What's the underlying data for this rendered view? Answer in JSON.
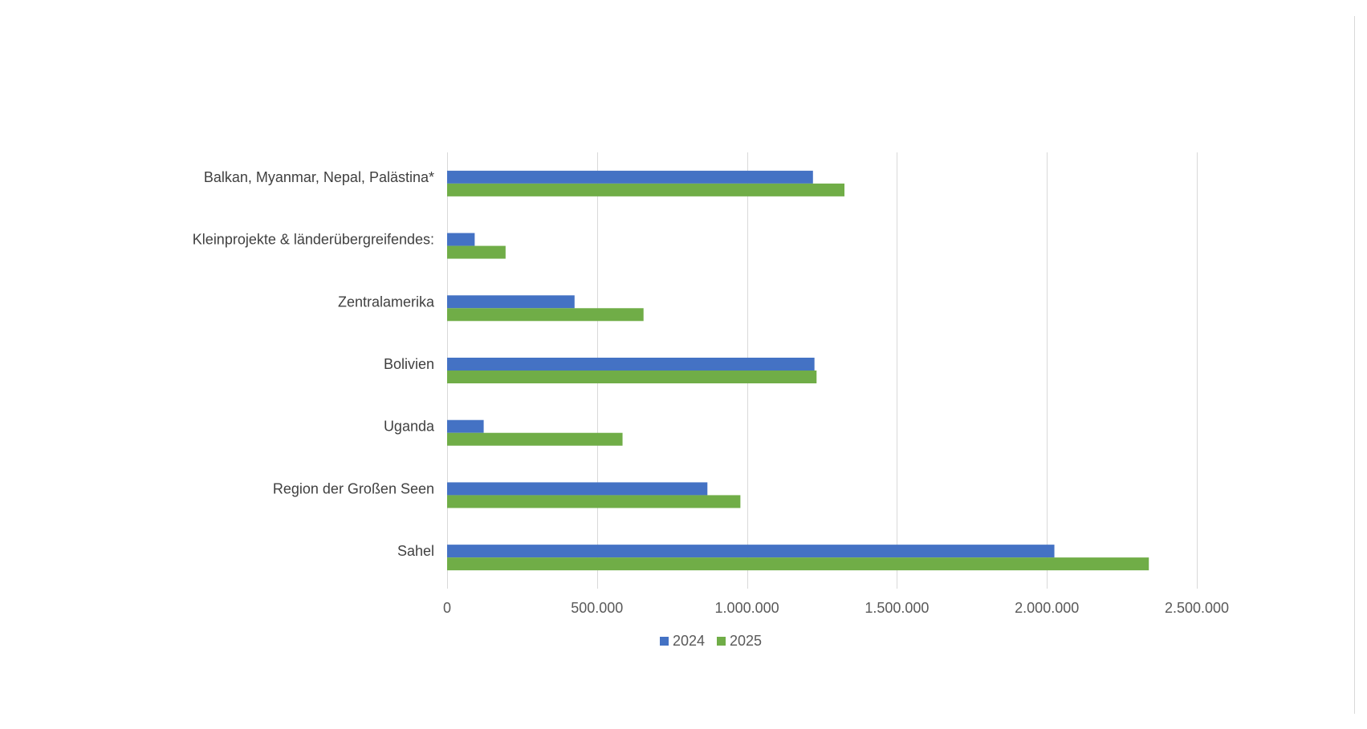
{
  "chart_data": {
    "type": "bar",
    "orientation": "horizontal",
    "title": "",
    "xlabel": "",
    "ylabel": "",
    "categories": [
      "Sahel",
      "Region der Großen Seen",
      "Uganda",
      "Bolivien",
      "Zentralamerika",
      "Kleinprojekte & länderübergreifendes:",
      "Balkan, Myanmar, Nepal, Palästina*"
    ],
    "series": [
      {
        "name": "2024",
        "color": "#4472c4",
        "values": [
          2025000,
          868000,
          122000,
          1225000,
          425000,
          92000,
          1220000
        ]
      },
      {
        "name": "2025",
        "color": "#70ad47",
        "values": [
          2340000,
          978000,
          585000,
          1232000,
          655000,
          195000,
          1325000
        ]
      }
    ],
    "xlim": [
      0,
      2500000
    ],
    "xticks": [
      0,
      500000,
      1000000,
      1500000,
      2000000,
      2500000
    ],
    "xtick_labels": [
      "0",
      "500.000",
      "1.000.000",
      "1.500.000",
      "2.000.000",
      "2.500.000"
    ],
    "grid": "vertical",
    "legend_position": "bottom"
  }
}
